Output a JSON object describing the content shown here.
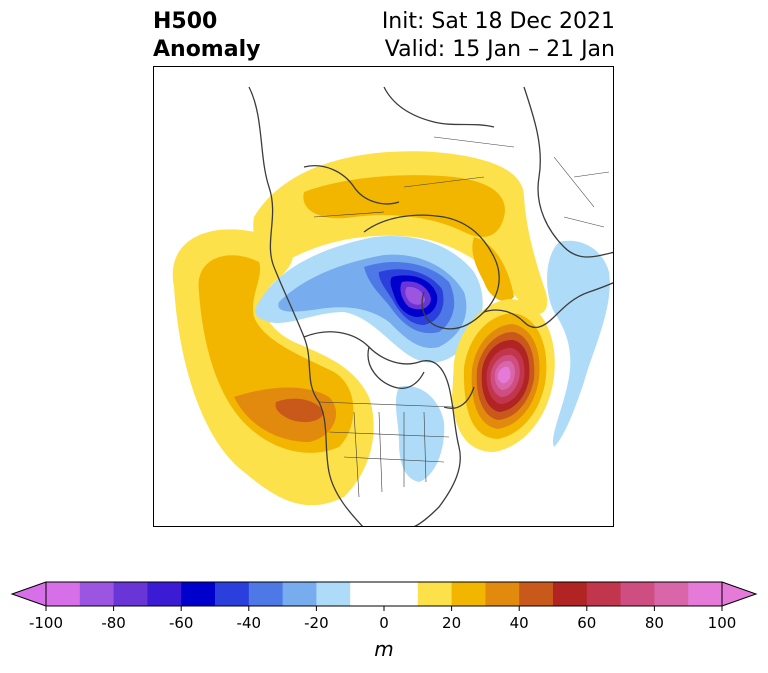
{
  "header": {
    "variable_line1": "H500",
    "variable_line2": "Anomaly",
    "init_text": "Init: Sat 18 Dec 2021",
    "valid_text": "Valid: 15 Jan – 21 Jan"
  },
  "map": {
    "projection": "polar stereographic (North America / Arctic)",
    "anomaly_features": [
      {
        "sign": "positive",
        "region": "Gulf of Alaska / NE Pacific",
        "approx_value_m": 40
      },
      {
        "sign": "positive",
        "region": "Western United States",
        "approx_value_m": 40
      },
      {
        "sign": "positive",
        "region": "Northern Eurasia / Arctic",
        "approx_value_m": 30
      },
      {
        "sign": "positive",
        "region": "North Atlantic",
        "approx_value_m": 100
      },
      {
        "sign": "negative",
        "region": "Hudson Bay / Greenland",
        "approx_value_m": -80
      },
      {
        "sign": "negative",
        "region": "Eastern Atlantic / Europe",
        "approx_value_m": -20
      },
      {
        "sign": "negative",
        "region": "Southeastern United States",
        "approx_value_m": -20
      }
    ]
  },
  "colorbar": {
    "unit_label": "m",
    "tick_labels": [
      "-100",
      "-80",
      "-60",
      "-40",
      "-20",
      "0",
      "20",
      "40",
      "60",
      "80",
      "100"
    ],
    "levels": [
      -100,
      -90,
      -80,
      -70,
      -60,
      -50,
      -40,
      -30,
      -20,
      -10,
      10,
      20,
      30,
      40,
      50,
      60,
      70,
      80,
      90,
      100
    ],
    "colors": [
      "#d66fe8",
      "#9b55e0",
      "#6a35d6",
      "#3b1cd4",
      "#0000cc",
      "#2a3fdc",
      "#4e78e6",
      "#77acee",
      "#aedcf8",
      "#ffffff",
      "#fde14b",
      "#f2b600",
      "#e28a0e",
      "#c9591a",
      "#b02424",
      "#c2364d",
      "#cf4e82",
      "#d866a8",
      "#e57ad8"
    ],
    "extend_low_color": "#d66fe8",
    "extend_high_color": "#e57ad8"
  }
}
